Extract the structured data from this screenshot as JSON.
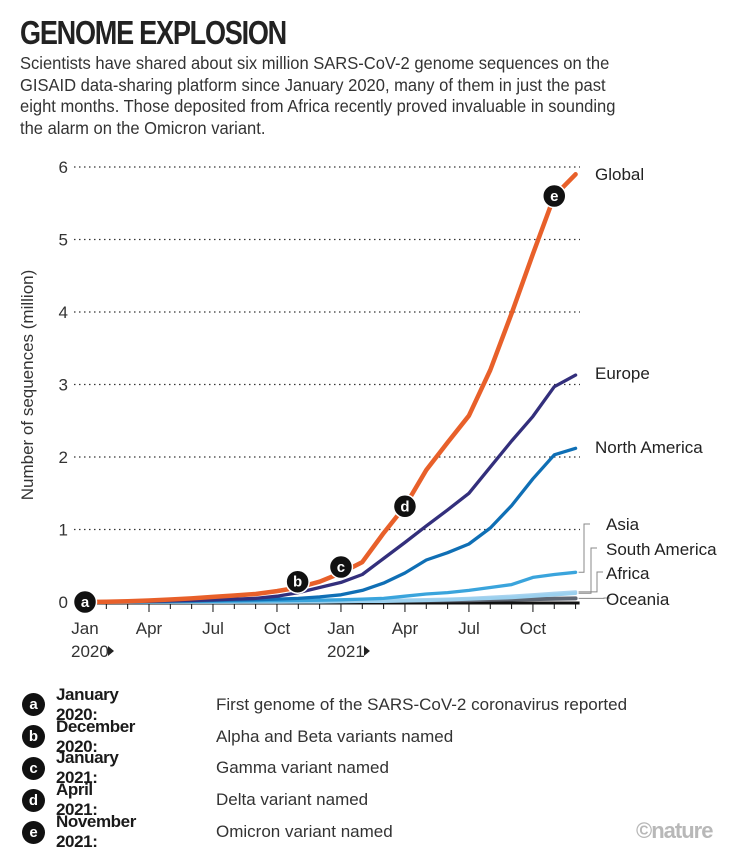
{
  "header": {
    "title": "GENOME EXPLOSION",
    "subtitle": "Scientists have shared about six million SARS-CoV-2 genome sequences on the GISAID data-sharing platform since January 2020, many of them in just the past eight months. Those deposited from Africa recently proved invaluable in sounding the alarm on the Omicron variant."
  },
  "chart_data": {
    "type": "line",
    "title": "GENOME EXPLOSION",
    "xlabel": "",
    "ylabel": "Number of sequences (million)",
    "ylim": [
      0,
      6
    ],
    "yticks": [
      0,
      1,
      2,
      3,
      4,
      5,
      6
    ],
    "grid": "horizontal dotted",
    "x_tick_labels": [
      "Jan",
      "Apr",
      "Jul",
      "Oct",
      "Jan",
      "Apr",
      "Jul",
      "Oct"
    ],
    "x_tick_months": [
      0,
      3,
      6,
      9,
      12,
      15,
      18,
      21
    ],
    "x_year_labels": [
      {
        "label": "2020",
        "month": 0
      },
      {
        "label": "2021",
        "month": 12
      }
    ],
    "x": [
      "2020-01",
      "2020-02",
      "2020-03",
      "2020-04",
      "2020-05",
      "2020-06",
      "2020-07",
      "2020-08",
      "2020-09",
      "2020-10",
      "2020-11",
      "2020-12",
      "2021-01",
      "2021-02",
      "2021-03",
      "2021-04",
      "2021-05",
      "2021-06",
      "2021-07",
      "2021-08",
      "2021-09",
      "2021-10",
      "2021-11",
      "2021-12"
    ],
    "legend": "direct labels at right",
    "series": [
      {
        "name": "Oceania",
        "color": "#5f6672",
        "values": [
          0,
          0,
          0,
          0,
          0,
          0,
          0,
          0,
          0,
          0,
          0.005,
          0.01,
          0.012,
          0.014,
          0.016,
          0.018,
          0.02,
          0.022,
          0.025,
          0.03,
          0.035,
          0.04,
          0.045,
          0.05
        ]
      },
      {
        "name": "Africa",
        "color": "#a9d3ef",
        "values": [
          0,
          0,
          0,
          0,
          0,
          0,
          0,
          0,
          0.005,
          0.008,
          0.01,
          0.012,
          0.015,
          0.018,
          0.022,
          0.027,
          0.033,
          0.04,
          0.05,
          0.065,
          0.08,
          0.1,
          0.12,
          0.14
        ]
      },
      {
        "name": "South America",
        "color": "#9bd0ee",
        "values": [
          0,
          0,
          0,
          0,
          0,
          0,
          0,
          0,
          0,
          0,
          0,
          0,
          0.005,
          0.008,
          0.01,
          0.015,
          0.02,
          0.03,
          0.04,
          0.05,
          0.06,
          0.08,
          0.1,
          0.12
        ]
      },
      {
        "name": "Asia",
        "color": "#3aa4dc",
        "values": [
          0,
          0,
          0,
          0.003,
          0.005,
          0.008,
          0.01,
          0.012,
          0.015,
          0.018,
          0.02,
          0.025,
          0.03,
          0.04,
          0.05,
          0.08,
          0.11,
          0.13,
          0.16,
          0.2,
          0.24,
          0.34,
          0.38,
          0.41
        ]
      },
      {
        "name": "North America",
        "color": "#0f6fb5",
        "values": [
          0,
          0.001,
          0.003,
          0.008,
          0.012,
          0.017,
          0.022,
          0.027,
          0.032,
          0.04,
          0.05,
          0.07,
          0.1,
          0.16,
          0.26,
          0.4,
          0.58,
          0.68,
          0.8,
          1.02,
          1.33,
          1.7,
          2.03,
          2.12
        ]
      },
      {
        "name": "Europe",
        "color": "#332f7c",
        "values": [
          0,
          0.002,
          0.005,
          0.01,
          0.015,
          0.02,
          0.03,
          0.04,
          0.05,
          0.08,
          0.13,
          0.2,
          0.27,
          0.38,
          0.6,
          0.82,
          1.05,
          1.27,
          1.5,
          1.86,
          2.22,
          2.56,
          2.97,
          3.13
        ]
      },
      {
        "name": "Global",
        "color": "#e8602a",
        "values": [
          0,
          0.003,
          0.01,
          0.02,
          0.035,
          0.05,
          0.07,
          0.09,
          0.11,
          0.15,
          0.2,
          0.28,
          0.4,
          0.55,
          0.95,
          1.32,
          1.82,
          2.2,
          2.57,
          3.2,
          3.98,
          4.8,
          5.6,
          5.9
        ]
      }
    ],
    "annotations": [
      {
        "key": "a",
        "series": "Global",
        "month": 0,
        "value": 0
      },
      {
        "key": "b",
        "series": "Global",
        "month": 11,
        "value": 0.28
      },
      {
        "key": "c",
        "series": "Global",
        "month": 12,
        "value": 0.4
      },
      {
        "key": "d",
        "series": "Global",
        "month": 15,
        "value": 1.32
      },
      {
        "key": "e",
        "series": "Global",
        "month": 22,
        "value": 5.6
      }
    ]
  },
  "series_labels": {
    "global": "Global",
    "europe": "Europe",
    "north_america": "North America",
    "asia": "Asia",
    "south_america": "South America",
    "africa": "Africa",
    "oceania": "Oceania"
  },
  "notes": [
    {
      "key": "a",
      "date": "January 2020:",
      "text": "First genome of the SARS-CoV-2 coronavirus reported"
    },
    {
      "key": "b",
      "date": "December 2020:",
      "text": "Alpha and Beta variants named"
    },
    {
      "key": "c",
      "date": "January 2021:",
      "text": "Gamma variant named"
    },
    {
      "key": "d",
      "date": "April 2021:",
      "text": "Delta variant named"
    },
    {
      "key": "e",
      "date": "November 2021:",
      "text": "Omicron variant named"
    }
  ],
  "credit": "©nature"
}
